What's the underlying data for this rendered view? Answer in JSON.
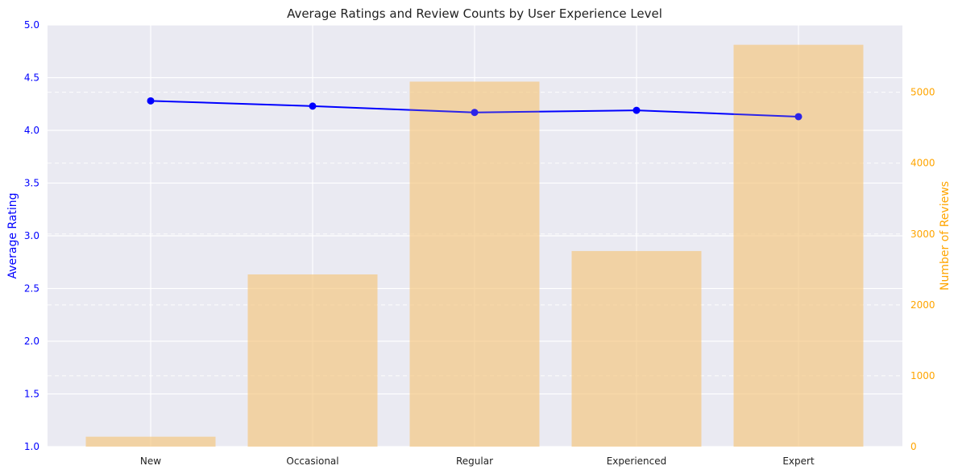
{
  "chart_data": {
    "type": "bar+line",
    "title": "Average Ratings and Review Counts by User Experience Level",
    "categories": [
      "New",
      "Occasional",
      "Regular",
      "Experienced",
      "Expert"
    ],
    "xlabel": "",
    "left_axis": {
      "label": "Average Rating",
      "ylim": [
        1.0,
        5.0
      ],
      "ticks": [
        "1.0",
        "1.5",
        "2.0",
        "2.5",
        "3.0",
        "3.5",
        "4.0",
        "4.5",
        "5.0"
      ],
      "color": "#0000ff"
    },
    "right_axis": {
      "label": "Number of Reviews",
      "ylim": [
        0,
        5950
      ],
      "ticks": [
        "0",
        "1000",
        "2000",
        "3000",
        "4000",
        "5000"
      ],
      "color": "#ffa500"
    },
    "series": [
      {
        "kind": "bar",
        "axis": "right",
        "values": [
          140,
          2430,
          5150,
          2760,
          5670
        ],
        "color": "#f5c77e"
      },
      {
        "kind": "line",
        "axis": "left",
        "values": [
          4.28,
          4.23,
          4.17,
          4.19,
          4.13
        ],
        "color": "#0000ff"
      }
    ],
    "grid": true,
    "background": "#eaeaf2"
  }
}
